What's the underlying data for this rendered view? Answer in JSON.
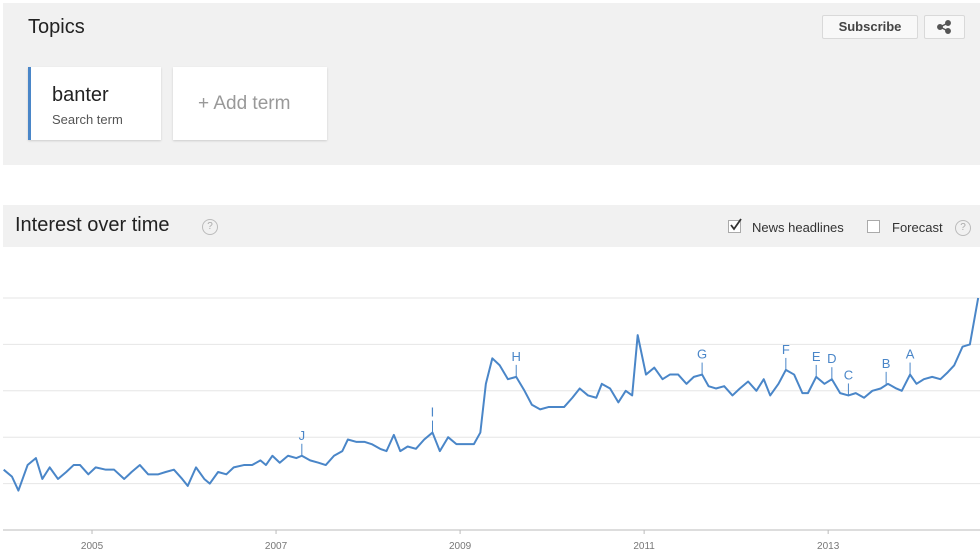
{
  "ui": {
    "topics": "Topics",
    "subscribe": "Subscribe",
    "term": "banter",
    "term_kind": "Search term",
    "add_term": "+ Add term",
    "section_title": "Interest over time",
    "news_headlines": "News headlines",
    "forecast": "Forecast"
  },
  "chart_data": {
    "type": "line",
    "color": "#4a86c8",
    "grid": true,
    "xlim": [
      2004,
      2014.65
    ],
    "xticks": [
      2005,
      2007,
      2009,
      2011,
      2013
    ],
    "ylim": [
      0,
      100
    ],
    "yticks": [
      0,
      20,
      40,
      60,
      80,
      100
    ],
    "x": [
      2004.04,
      2004.13,
      2004.2,
      2004.3,
      2004.39,
      2004.46,
      2004.54,
      2004.63,
      2004.72,
      2004.8,
      2004.87,
      2004.96,
      2005.04,
      2005.15,
      2005.24,
      2005.35,
      2005.43,
      2005.52,
      2005.61,
      2005.72,
      2005.8,
      2005.89,
      2005.98,
      2006.04,
      2006.13,
      2006.22,
      2006.28,
      2006.37,
      2006.46,
      2006.54,
      2006.65,
      2006.74,
      2006.83,
      2006.89,
      2006.96,
      2007.04,
      2007.13,
      2007.22,
      2007.28,
      2007.37,
      2007.46,
      2007.54,
      2007.63,
      2007.72,
      2007.78,
      2007.87,
      2007.96,
      2008.04,
      2008.13,
      2008.2,
      2008.28,
      2008.35,
      2008.43,
      2008.52,
      2008.61,
      2008.7,
      2008.78,
      2008.87,
      2008.96,
      2009.07,
      2009.15,
      2009.22,
      2009.28,
      2009.35,
      2009.43,
      2009.52,
      2009.61,
      2009.7,
      2009.78,
      2009.87,
      2009.96,
      2010.04,
      2010.13,
      2010.22,
      2010.3,
      2010.39,
      2010.48,
      2010.54,
      2010.63,
      2010.72,
      2010.8,
      2010.87,
      2010.93,
      2011.02,
      2011.11,
      2011.2,
      2011.28,
      2011.37,
      2011.46,
      2011.54,
      2011.63,
      2011.7,
      2011.78,
      2011.87,
      2011.96,
      2012.04,
      2012.13,
      2012.22,
      2012.3,
      2012.37,
      2012.46,
      2012.54,
      2012.63,
      2012.72,
      2012.78,
      2012.87,
      2012.96,
      2013.04,
      2013.13,
      2013.22,
      2013.3,
      2013.39,
      2013.48,
      2013.57,
      2013.65,
      2013.74,
      2013.8,
      2013.89,
      2013.96,
      2014.04,
      2014.13,
      2014.22,
      2014.3,
      2014.37,
      2014.46,
      2014.54,
      2014.63
    ],
    "series": [
      {
        "values": [
          26,
          23,
          17,
          28,
          31,
          22,
          27,
          22,
          25,
          28,
          28,
          24,
          27,
          26,
          26,
          22,
          25,
          28,
          24,
          24,
          25,
          26,
          22,
          19,
          27,
          22,
          20,
          25,
          24,
          27,
          28,
          28,
          30,
          28,
          32,
          29,
          32,
          31,
          32,
          30,
          29,
          28,
          32,
          34,
          39,
          38,
          38,
          37,
          35,
          34,
          41,
          34,
          36,
          35,
          39,
          42,
          34,
          40,
          37,
          37,
          37,
          42,
          63,
          74,
          71,
          65,
          66,
          60,
          54,
          52,
          53,
          53,
          53,
          57,
          61,
          58,
          57,
          63,
          61,
          55,
          60,
          58,
          84,
          67,
          70,
          65,
          67,
          67,
          63,
          66,
          67,
          62,
          61,
          62,
          58,
          61,
          64,
          60,
          65,
          58,
          63,
          69,
          67,
          59,
          59,
          66,
          63,
          65,
          59,
          58,
          59,
          57,
          60,
          61,
          63,
          61,
          60,
          67,
          63,
          65,
          66,
          65,
          68,
          71,
          79,
          80,
          100
        ]
      }
    ],
    "annotations": [
      {
        "label": "J",
        "x": 2007.28,
        "y": 32
      },
      {
        "label": "I",
        "x": 2008.7,
        "y": 42
      },
      {
        "label": "H",
        "x": 2009.61,
        "y": 66
      },
      {
        "label": "G",
        "x": 2011.63,
        "y": 67
      },
      {
        "label": "F",
        "x": 2012.54,
        "y": 69
      },
      {
        "label": "E",
        "x": 2012.87,
        "y": 66
      },
      {
        "label": "D",
        "x": 2013.04,
        "y": 65
      },
      {
        "label": "C",
        "x": 2013.22,
        "y": 58
      },
      {
        "label": "B",
        "x": 2013.63,
        "y": 63
      },
      {
        "label": "A",
        "x": 2013.89,
        "y": 67
      }
    ]
  }
}
